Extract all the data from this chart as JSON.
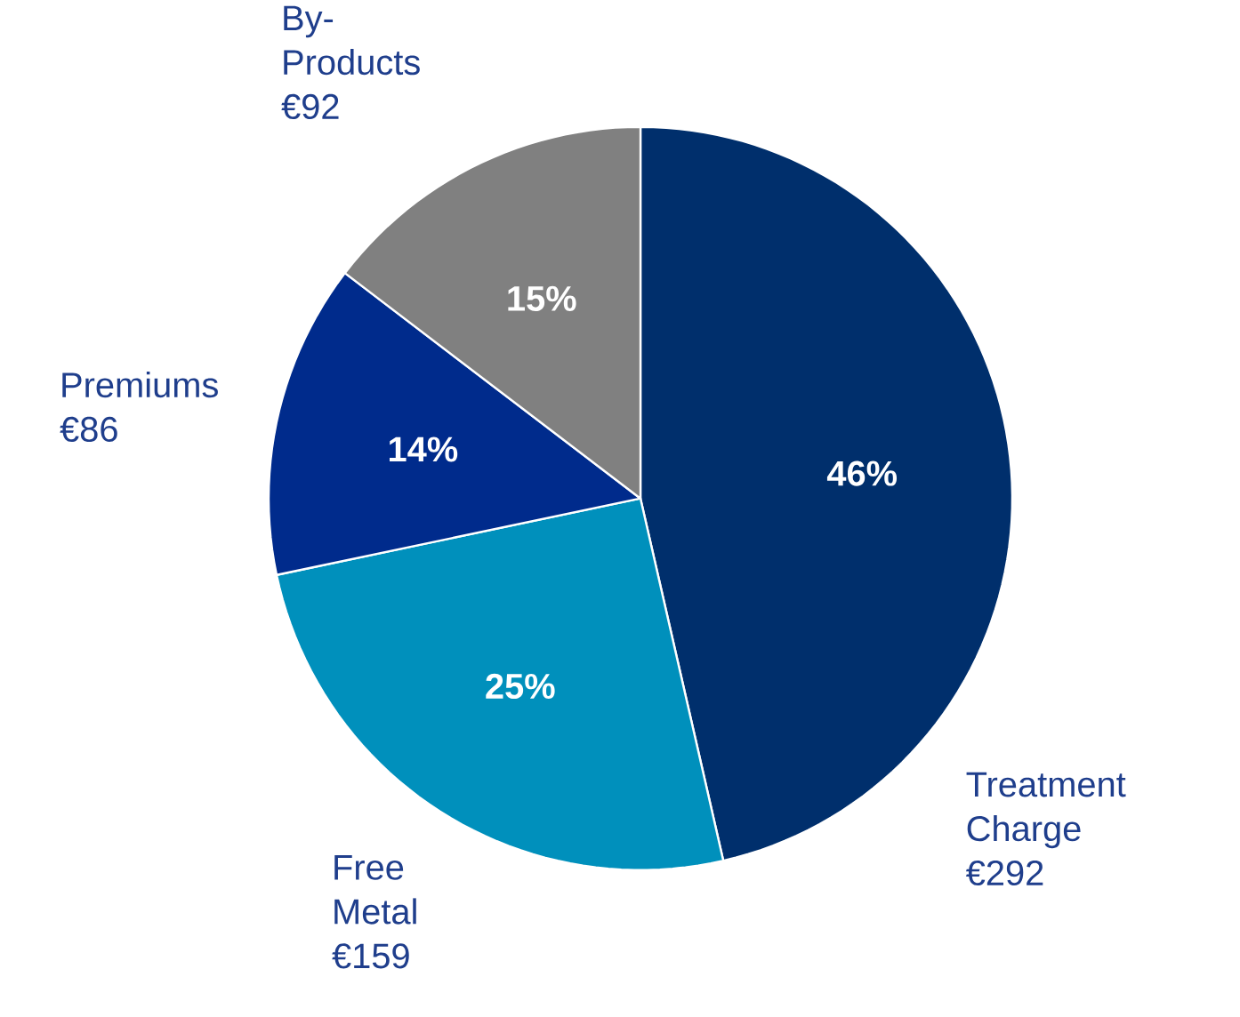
{
  "chart_data": {
    "type": "pie",
    "categories": [
      "Treatment Charge",
      "Free Metal",
      "Premiums",
      "By-Products"
    ],
    "values": [
      292,
      159,
      86,
      92
    ],
    "colors": [
      "#002f6c",
      "#0090bc",
      "#002b8c",
      "#808080"
    ],
    "value_labels": [
      "€292",
      "€159",
      "€86",
      "€92"
    ],
    "annotations": [
      {
        "text": "46%",
        "x": "Treatment Charge"
      },
      {
        "text": "25%",
        "x": "Free Metal"
      },
      {
        "text": "14%",
        "x": "Premiums"
      },
      {
        "text": "15%",
        "x": "By-Products"
      }
    ]
  }
}
